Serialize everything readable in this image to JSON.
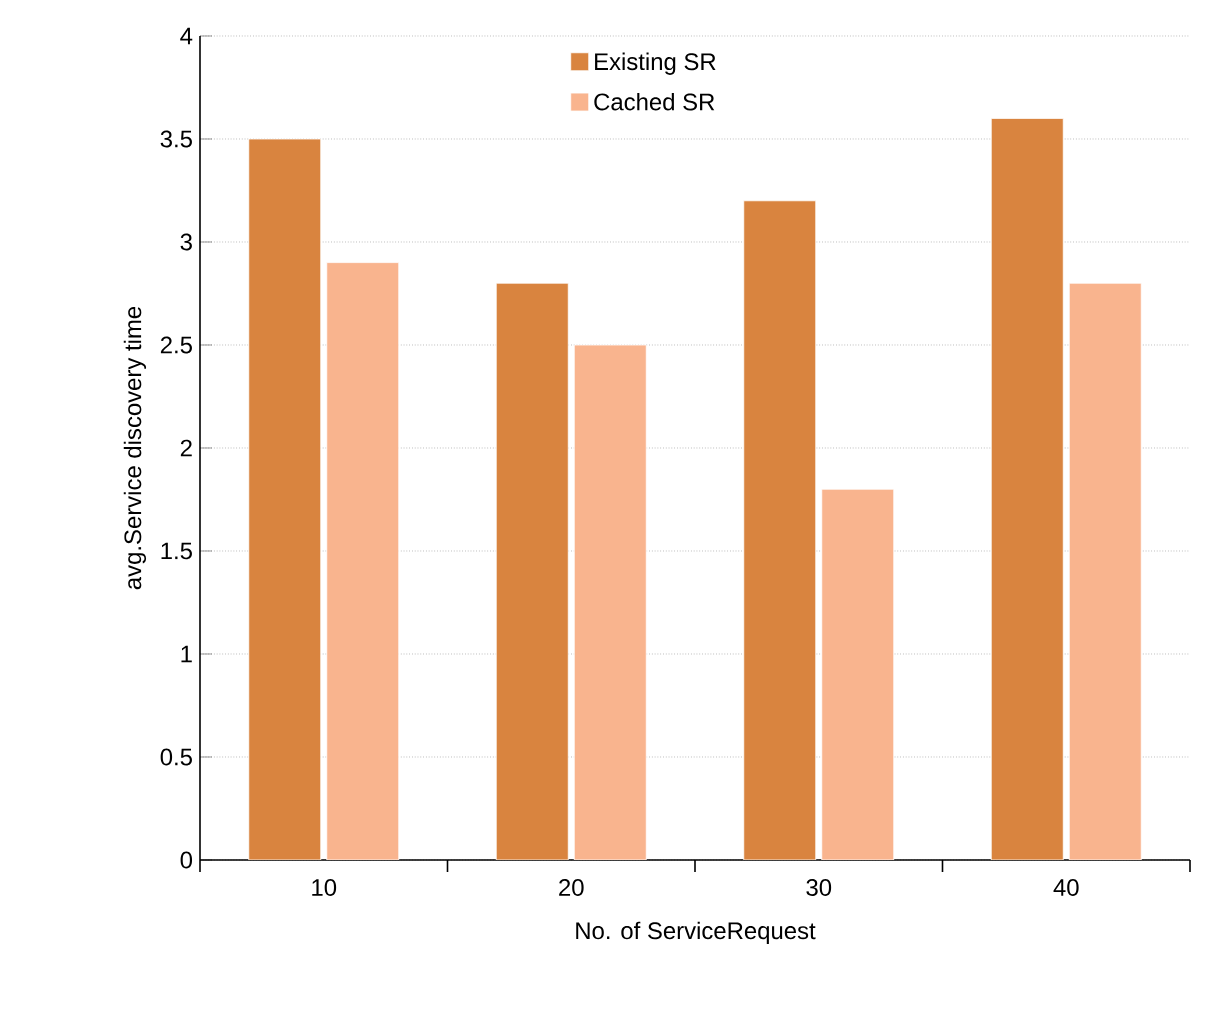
{
  "chart_data": {
    "type": "bar",
    "xlabel": "No. of ServiceRequest",
    "ylabel": "avg.Service discovery time",
    "categories": [
      "10",
      "20",
      "30",
      "40"
    ],
    "series": [
      {
        "name": "Existing SR",
        "color": "#d9843f",
        "values": [
          3.5,
          2.8,
          3.2,
          3.6
        ]
      },
      {
        "name": "Cached SR",
        "color": "#f9b48e",
        "values": [
          2.9,
          2.5,
          1.8,
          2.8
        ]
      }
    ],
    "ylim": [
      0,
      4
    ],
    "yticks": [
      0,
      0.5,
      1,
      1.5,
      2,
      2.5,
      3,
      3.5,
      4
    ],
    "grid": "y",
    "legend": "top"
  }
}
